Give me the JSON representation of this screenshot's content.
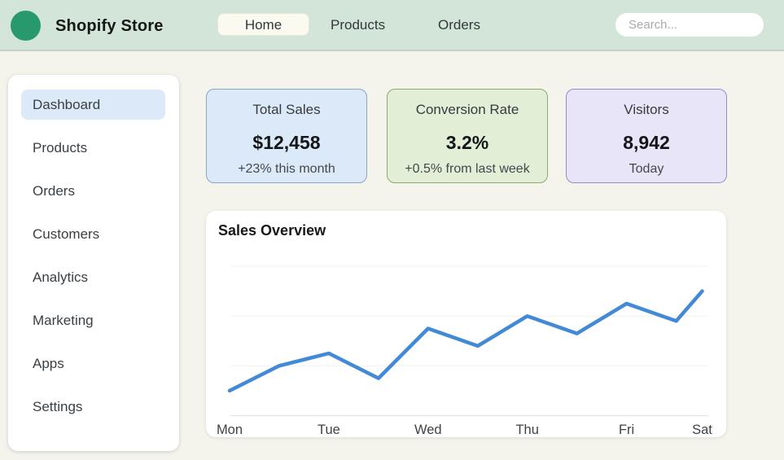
{
  "header": {
    "store_name": "Shopify Store",
    "logo_color": "#28996d",
    "nav": [
      {
        "label": "Home",
        "active": true
      },
      {
        "label": "Products",
        "active": false
      },
      {
        "label": "Orders",
        "active": false
      }
    ],
    "search_placeholder": "Search..."
  },
  "sidebar": {
    "items": [
      {
        "label": "Dashboard",
        "active": true
      },
      {
        "label": "Products",
        "active": false
      },
      {
        "label": "Orders",
        "active": false
      },
      {
        "label": "Customers",
        "active": false
      },
      {
        "label": "Analytics",
        "active": false
      },
      {
        "label": "Marketing",
        "active": false
      },
      {
        "label": "Apps",
        "active": false
      },
      {
        "label": "Settings",
        "active": false
      }
    ]
  },
  "stats": [
    {
      "title": "Total Sales",
      "value": "$12,458",
      "subtitle": "+23% this month",
      "bg": "#dbe9f9",
      "border": "#89a5c8"
    },
    {
      "title": "Conversion Rate",
      "value": "3.2%",
      "subtitle": "+0.5% from last week",
      "bg": "#e3eed7",
      "border": "#8aab6d"
    },
    {
      "title": "Visitors",
      "value": "8,942",
      "subtitle": "Today",
      "bg": "#e8e5f8",
      "border": "#968bd1"
    }
  ],
  "chart_data": {
    "type": "line",
    "title": "Sales Overview",
    "x_tick_labels": [
      "Mon",
      "Tue",
      "Wed",
      "Thu",
      "Fri",
      "Sat"
    ],
    "labeled_point_indices": [
      0,
      2,
      4,
      6,
      8,
      10
    ],
    "points": [
      {
        "x_fraction": 0.0,
        "value": 10
      },
      {
        "x_fraction": 0.105,
        "value": 20
      },
      {
        "x_fraction": 0.21,
        "value": 25
      },
      {
        "x_fraction": 0.315,
        "value": 15
      },
      {
        "x_fraction": 0.42,
        "value": 35
      },
      {
        "x_fraction": 0.525,
        "value": 28
      },
      {
        "x_fraction": 0.63,
        "value": 40
      },
      {
        "x_fraction": 0.735,
        "value": 33
      },
      {
        "x_fraction": 0.84,
        "value": 45
      },
      {
        "x_fraction": 0.945,
        "value": 38
      },
      {
        "x_fraction": 1.0,
        "value": 50
      }
    ],
    "ylim": [
      0,
      60
    ],
    "gridline_values": [
      0,
      20,
      40,
      60
    ],
    "grid": true,
    "legend": false,
    "line_color": "#4289d6",
    "tick_label_color": "#3f4246"
  }
}
